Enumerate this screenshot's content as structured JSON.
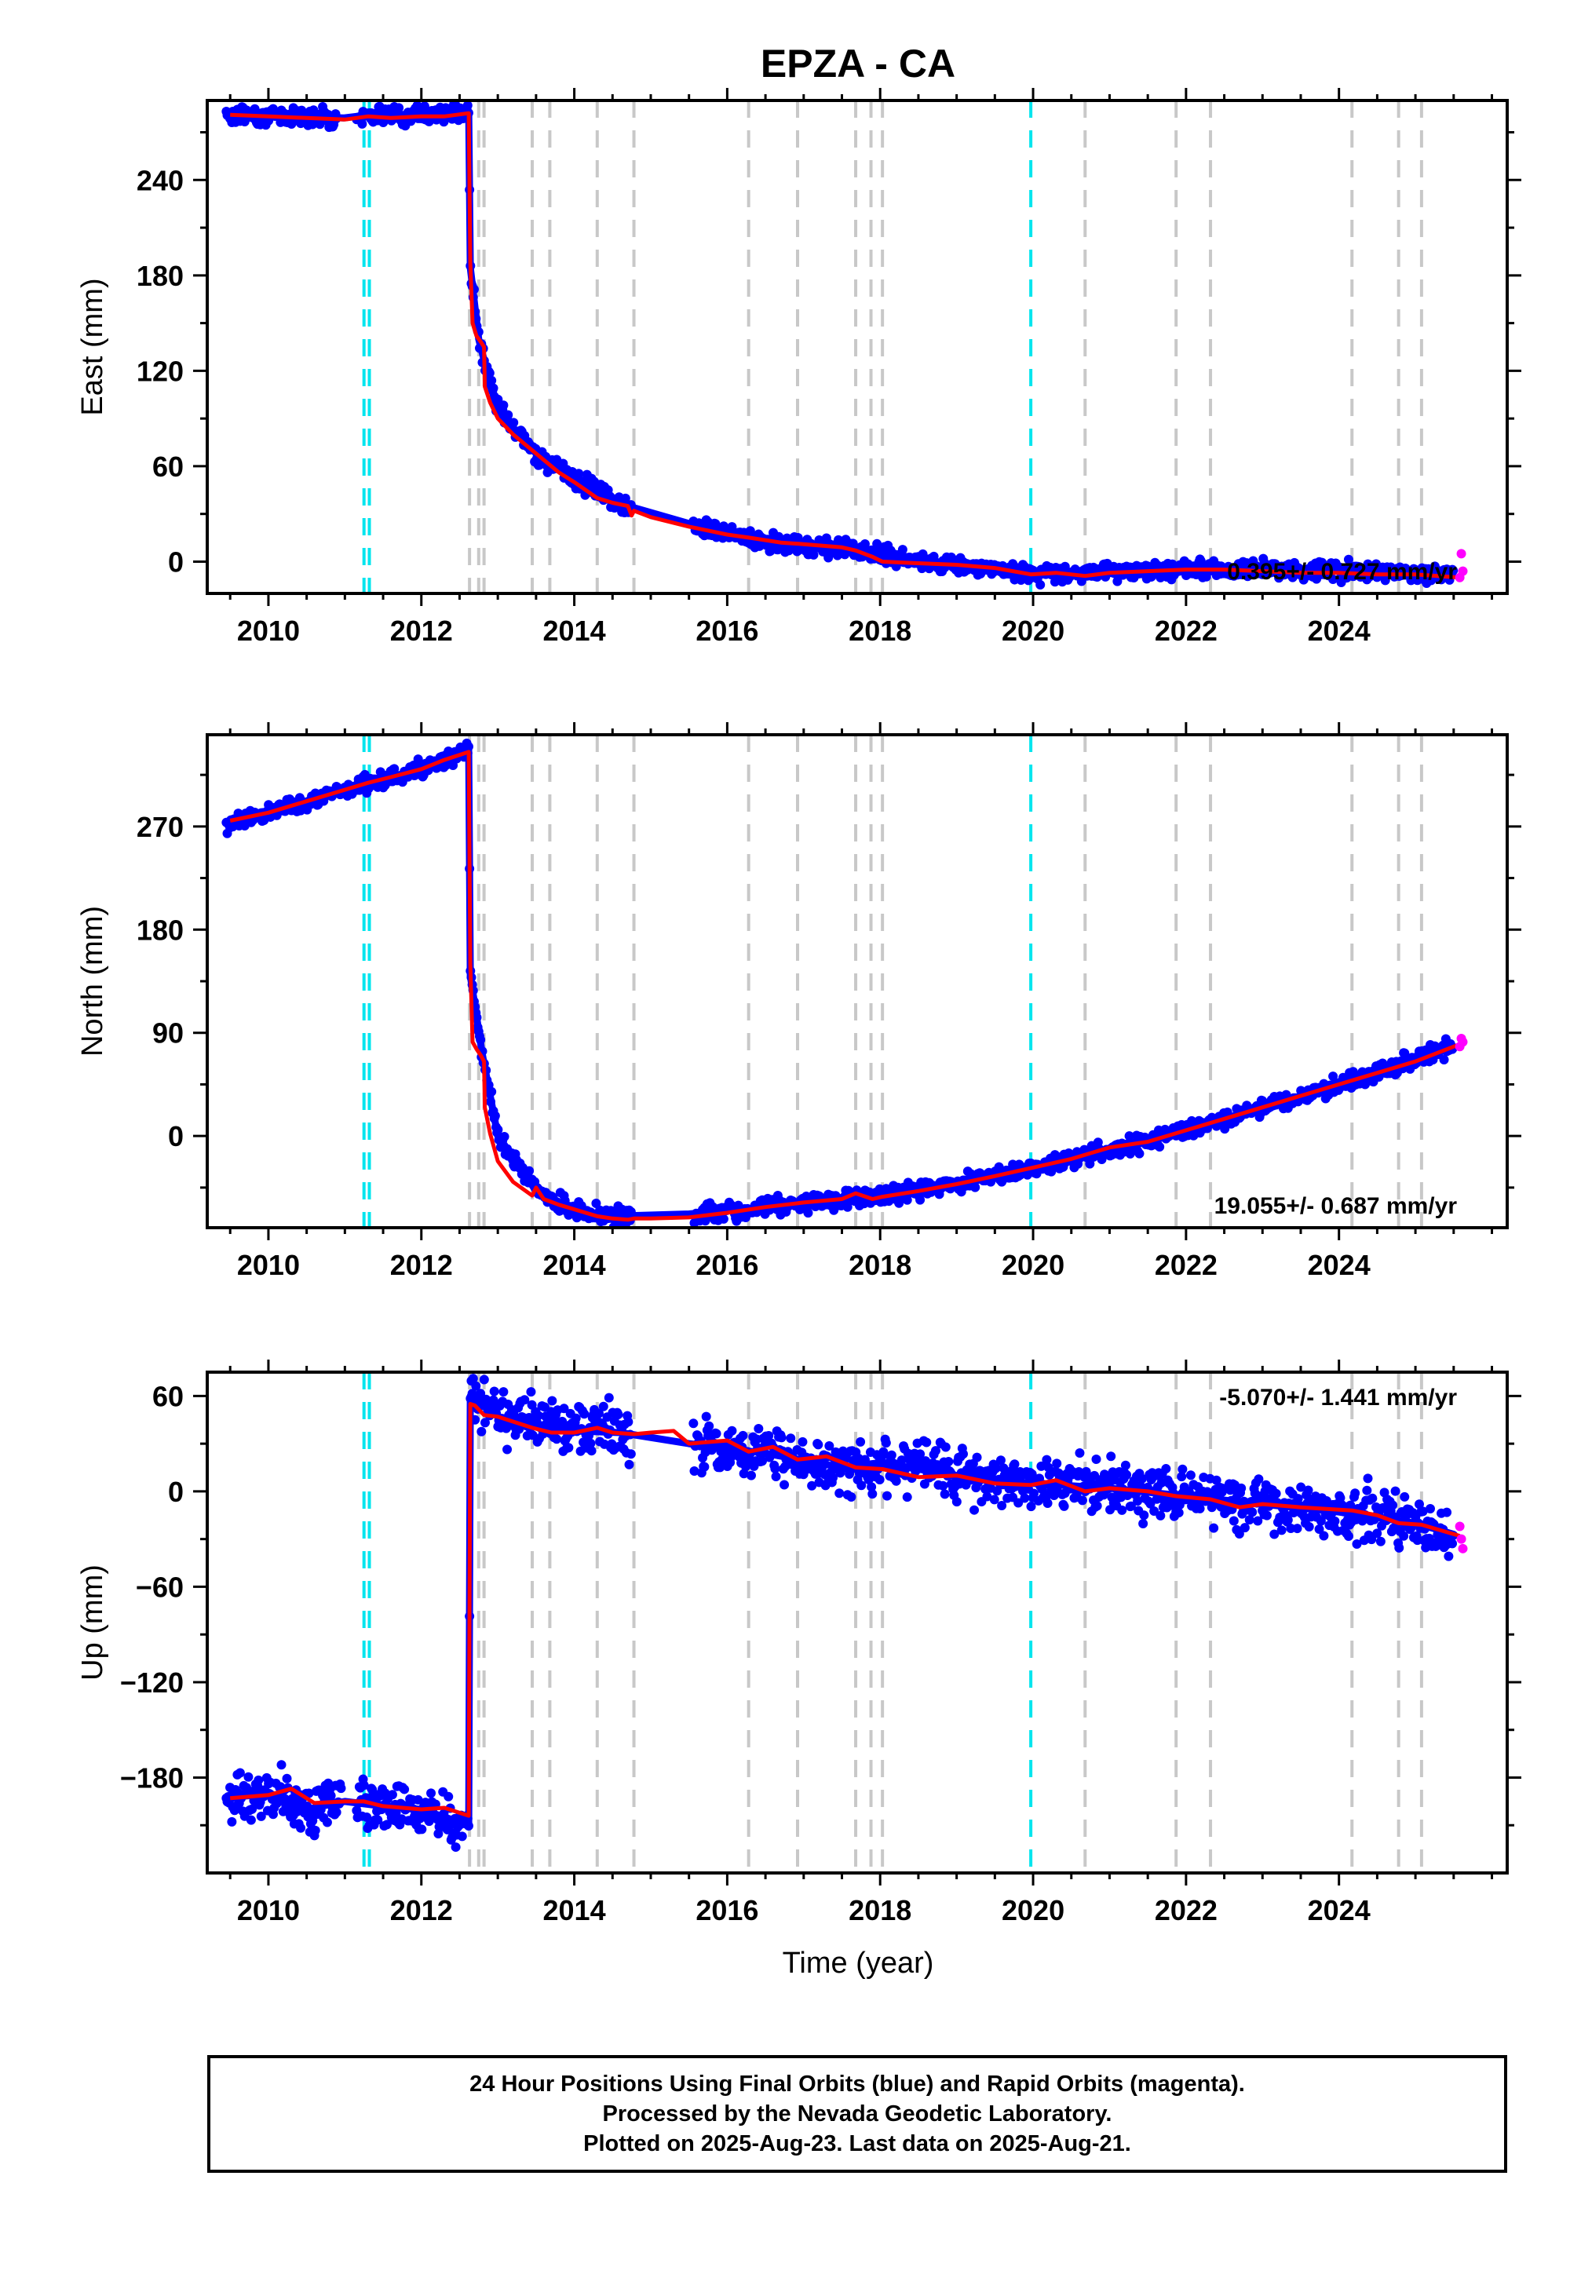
{
  "title": "EPZA - CA",
  "xlabel": "Time (year)",
  "colors": {
    "final_orbits": "#0000ff",
    "rapid_orbits": "#ff00ff",
    "model": "#ff0000",
    "event_dashes": "#c8c8c8",
    "special_dashes": "#00e5ee"
  },
  "footer": {
    "line1": "24 Hour Positions Using Final Orbits (blue) and Rapid Orbits (magenta).",
    "line2": "Processed by the Nevada Geodetic Laboratory.",
    "line3": "Plotted on 2025-Aug-23. Last data on 2025-Aug-21."
  },
  "chart_data": [
    {
      "type": "scatter",
      "panel": "east",
      "ylabel": "East (mm)",
      "xlim": [
        2009.2,
        2026.2
      ],
      "ylim": [
        -20,
        290
      ],
      "xticks": [
        2010,
        2012,
        2014,
        2016,
        2018,
        2020,
        2022,
        2024
      ],
      "yticks": [
        0,
        60,
        120,
        180,
        240
      ],
      "rate_annotation": "0.395+/- 0.727 mm/yr",
      "rate_position": "bottom-right",
      "grey_dashed_lines": [
        2012.63,
        2012.75,
        2012.82,
        2013.45,
        2013.68,
        2014.3,
        2014.78,
        2016.28,
        2016.92,
        2017.68,
        2017.88,
        2018.03,
        2020.68,
        2021.87,
        2022.32,
        2024.17,
        2024.78,
        2025.08
      ],
      "cyan_dashed_lines": [
        2011.25,
        2011.32,
        2019.97
      ],
      "series": [
        {
          "name": "model",
          "x": [
            2009.5,
            2010.0,
            2010.5,
            2011.0,
            2011.3,
            2011.6,
            2012.0,
            2012.3,
            2012.62,
            2012.64,
            2012.67,
            2012.72,
            2012.78,
            2012.82,
            2012.83,
            2012.9,
            2013.0,
            2013.2,
            2013.45,
            2013.6,
            2013.8,
            2014.0,
            2014.3,
            2014.5,
            2014.7,
            2014.75,
            2014.78,
            2015.0,
            2015.5,
            2016.0,
            2016.3,
            2016.7,
            2017.0,
            2017.5,
            2017.68,
            2017.9,
            2018.03,
            2018.5,
            2019.0,
            2019.5,
            2019.97,
            2020.3,
            2020.68,
            2021.0,
            2021.5,
            2022.0,
            2022.5,
            2023.0,
            2023.5,
            2024.0,
            2024.5,
            2025.0,
            2025.58
          ],
          "y": [
            281,
            280,
            279,
            278,
            280,
            279,
            280,
            280,
            282,
            188,
            150,
            142,
            138,
            135,
            110,
            100,
            90,
            80,
            70,
            64,
            56,
            50,
            40,
            37,
            35,
            29,
            32,
            28,
            22,
            17,
            15,
            12,
            11,
            9,
            7,
            3,
            0,
            -1,
            -2,
            -4,
            -8,
            -7,
            -9,
            -7,
            -6,
            -5,
            -5,
            -6,
            -7,
            -7,
            -8,
            -8,
            -10
          ]
        },
        {
          "name": "",
          "x": [
            2009.45,
            2010.5,
            2010.98,
            2011.15,
            2012.62,
            2012.64,
            2012.75,
            2012.83,
            2013.0,
            2013.5,
            2014.0,
            2014.5,
            2014.7,
            2015.5,
            2016.0,
            2016.5,
            2017.0,
            2017.6,
            2017.95,
            2018.5,
            2019.0,
            2019.97,
            2020.5,
            2021.0,
            2022.0,
            2023.0,
            2024.0,
            2025.0,
            2025.5
          ],
          "y": [
            281,
            280,
            279,
            280,
            283,
            185,
            140,
            125,
            95,
            68,
            52,
            40,
            35,
            24,
            18,
            12,
            10,
            8,
            4,
            0,
            -2,
            -7,
            -7,
            -6,
            -5,
            -5,
            -6,
            -7,
            -9
          ],
          "stroke": "full"
        },
        {
          "name": "",
          "x": [
            2025.58,
            2025.6,
            2025.62
          ],
          "y": [
            -10,
            5,
            -6
          ]
        }
      ]
    },
    {
      "type": "scatter",
      "panel": "north",
      "ylabel": "North (mm)",
      "xlim": [
        2009.2,
        2026.2
      ],
      "ylim": [
        -80,
        350
      ],
      "xticks": [
        2010,
        2012,
        2014,
        2016,
        2018,
        2020,
        2022,
        2024
      ],
      "yticks": [
        0,
        90,
        180,
        270
      ],
      "rate_annotation": "19.055+/- 0.687 mm/yr",
      "rate_position": "bottom-right",
      "grey_dashed_lines": [
        2012.63,
        2012.75,
        2012.82,
        2013.45,
        2013.68,
        2014.3,
        2014.78,
        2016.28,
        2016.92,
        2017.68,
        2017.88,
        2018.03,
        2020.68,
        2021.87,
        2022.32,
        2024.17,
        2024.78,
        2025.08
      ],
      "cyan_dashed_lines": [
        2011.25,
        2011.32,
        2019.97
      ],
      "series": [
        {
          "name": "model",
          "x": [
            2009.5,
            2010.0,
            2010.5,
            2011.0,
            2011.3,
            2011.6,
            2012.0,
            2012.3,
            2012.62,
            2012.64,
            2012.67,
            2012.72,
            2012.78,
            2012.82,
            2012.83,
            2012.9,
            2013.0,
            2013.2,
            2013.45,
            2013.5,
            2013.6,
            2013.8,
            2014.0,
            2014.3,
            2014.5,
            2014.7,
            2014.78,
            2015.0,
            2015.5,
            2016.0,
            2016.5,
            2017.0,
            2017.5,
            2017.68,
            2017.9,
            2018.03,
            2018.5,
            2019.0,
            2019.5,
            2019.97,
            2020.5,
            2021.0,
            2021.5,
            2022.0,
            2022.5,
            2023.0,
            2023.5,
            2024.0,
            2024.5,
            2025.0,
            2025.58
          ],
          "y": [
            275,
            282,
            292,
            302,
            308,
            313,
            320,
            328,
            335,
            150,
            82,
            76,
            70,
            65,
            25,
            2,
            -22,
            -40,
            -52,
            -45,
            -55,
            -60,
            -64,
            -70,
            -72,
            -73,
            -72,
            -72,
            -71,
            -67,
            -62,
            -58,
            -55,
            -50,
            -55,
            -53,
            -48,
            -42,
            -35,
            -28,
            -20,
            -10,
            -5,
            5,
            15,
            25,
            35,
            45,
            55,
            65,
            80
          ]
        },
        {
          "name": "",
          "x": [
            2009.45,
            2010.0,
            2011.0,
            2012.0,
            2012.62,
            2012.64,
            2012.8,
            2013.0,
            2013.5,
            2014.0,
            2014.5,
            2015.5,
            2016.5,
            2017.5,
            2018.5,
            2019.5,
            2020.5,
            2021.5,
            2022.5,
            2023.5,
            2024.5,
            2025.5
          ],
          "y": [
            272,
            282,
            301,
            320,
            336,
            140,
            70,
            0,
            -48,
            -65,
            -70,
            -68,
            -62,
            -55,
            -48,
            -35,
            -20,
            -5,
            15,
            35,
            55,
            78
          ]
        },
        {
          "name": "",
          "x": [
            2025.58,
            2025.6,
            2025.62
          ],
          "y": [
            78,
            85,
            82
          ]
        }
      ]
    },
    {
      "type": "scatter",
      "panel": "up",
      "ylabel": "Up (mm)",
      "xlim": [
        2009.2,
        2026.2
      ],
      "ylim": [
        -240,
        75
      ],
      "xticks": [
        2010,
        2012,
        2014,
        2016,
        2018,
        2020,
        2022,
        2024
      ],
      "yticks": [
        -180,
        -120,
        -60,
        0,
        60
      ],
      "rate_annotation": "-5.070+/- 1.441 mm/yr",
      "rate_position": "top-right",
      "grey_dashed_lines": [
        2012.63,
        2012.75,
        2012.82,
        2013.45,
        2013.68,
        2014.3,
        2014.78,
        2016.28,
        2016.92,
        2017.68,
        2017.88,
        2018.03,
        2020.68,
        2021.87,
        2022.32,
        2024.17,
        2024.78,
        2025.08
      ],
      "cyan_dashed_lines": [
        2011.25,
        2011.32,
        2019.97
      ],
      "series": [
        {
          "name": "model",
          "x": [
            2009.5,
            2010.0,
            2010.3,
            2010.6,
            2011.0,
            2011.25,
            2011.5,
            2012.0,
            2012.3,
            2012.62,
            2012.64,
            2012.7,
            2012.82,
            2013.0,
            2013.45,
            2013.7,
            2014.0,
            2014.3,
            2014.5,
            2014.78,
            2015.0,
            2015.3,
            2015.5,
            2016.0,
            2016.28,
            2016.6,
            2016.92,
            2017.3,
            2017.68,
            2018.03,
            2018.5,
            2019.0,
            2019.5,
            2019.97,
            2020.3,
            2020.68,
            2021.0,
            2021.5,
            2021.87,
            2022.32,
            2022.7,
            2023.0,
            2023.5,
            2024.17,
            2024.5,
            2024.78,
            2025.08,
            2025.58
          ],
          "y": [
            -193,
            -191,
            -187,
            -196,
            -195,
            -195,
            -198,
            -200,
            -199,
            -204,
            55,
            54,
            48,
            47,
            40,
            37,
            37,
            40,
            37,
            36,
            37,
            38,
            30,
            32,
            25,
            28,
            20,
            22,
            15,
            14,
            9,
            10,
            5,
            4,
            7,
            0,
            2,
            0,
            -3,
            -5,
            -10,
            -8,
            -10,
            -12,
            -15,
            -20,
            -21,
            -28
          ]
        },
        {
          "name": "",
          "x": [
            2009.45,
            2010.0,
            2010.5,
            2011.0,
            2011.5,
            2012.0,
            2012.62,
            2012.64,
            2013.0,
            2014.0,
            2014.6,
            2015.5,
            2016.5,
            2017.5,
            2018.0,
            2019.0,
            2020.0,
            2021.0,
            2022.0,
            2023.0,
            2024.0,
            2025.0,
            2025.5
          ],
          "y": [
            -193,
            -190,
            -200,
            -195,
            -198,
            -200,
            -210,
            60,
            47,
            38,
            37,
            30,
            24,
            15,
            18,
            10,
            5,
            2,
            -3,
            -8,
            -13,
            -20,
            -27
          ]
        },
        {
          "name": "",
          "x": [
            2025.58,
            2025.6,
            2025.62
          ],
          "y": [
            -22,
            -30,
            -36
          ]
        }
      ]
    }
  ]
}
